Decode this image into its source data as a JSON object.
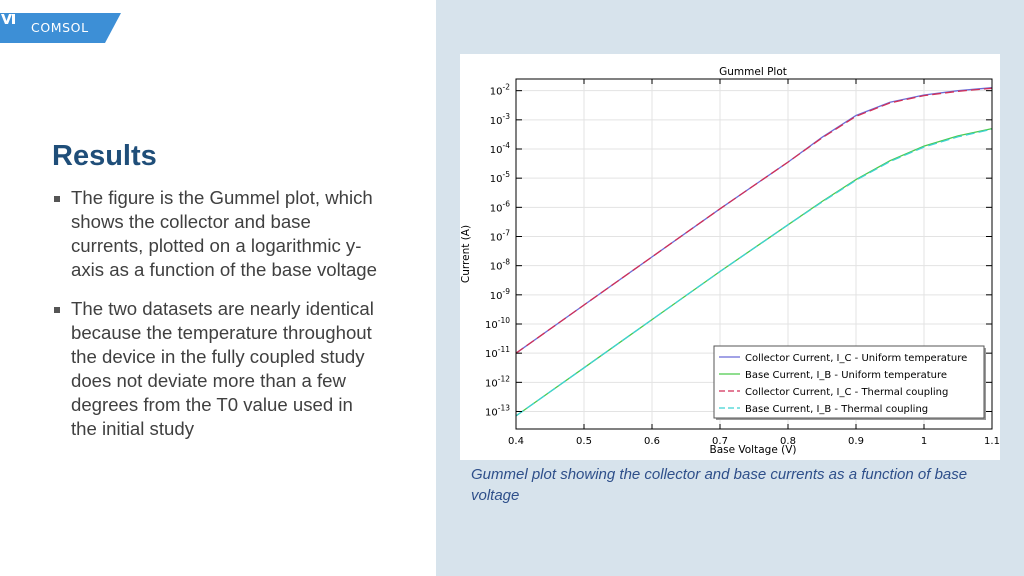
{
  "logo": {
    "text": "COMSOL",
    "tab_color": "#3d8fd6"
  },
  "slide": {
    "title": "Results",
    "bullets": [
      "The figure is the Gummel plot, which shows the collector and base currents, plotted on a logarithmic y-axis as a function of the base voltage",
      "The two datasets are nearly identical because the temperature throughout the device in the fully coupled study does not deviate more than a few degrees from the T0 value used in the initial study"
    ]
  },
  "caption": "Gummel plot showing the collector and base currents as a function of base voltage",
  "chart_data": {
    "type": "line",
    "title": "Gummel Plot",
    "xlabel": "Base Voltage (V)",
    "ylabel": "Current (A)",
    "xlim": [
      0.4,
      1.1
    ],
    "ylim_log10": [
      -13.6,
      -1.6
    ],
    "y_scale": "log",
    "grid": true,
    "legend_position": "bottom-right",
    "x_ticks": [
      {
        "value": 0.4,
        "label": "0.4"
      },
      {
        "value": 0.5,
        "label": "0.5"
      },
      {
        "value": 0.6,
        "label": "0.6"
      },
      {
        "value": 0.7,
        "label": "0.7"
      },
      {
        "value": 0.8,
        "label": "0.8"
      },
      {
        "value": 0.9,
        "label": "0.9"
      },
      {
        "value": 1.0,
        "label": "1"
      },
      {
        "value": 1.1,
        "label": "1.1"
      }
    ],
    "y_ticks": [
      {
        "exp": -2,
        "base": "10",
        "sup": "-2"
      },
      {
        "exp": -3,
        "base": "10",
        "sup": "-3"
      },
      {
        "exp": -4,
        "base": "10",
        "sup": "-4"
      },
      {
        "exp": -5,
        "base": "10",
        "sup": "-5"
      },
      {
        "exp": -6,
        "base": "10",
        "sup": "-6"
      },
      {
        "exp": -7,
        "base": "10",
        "sup": "-7"
      },
      {
        "exp": -8,
        "base": "10",
        "sup": "-8"
      },
      {
        "exp": -9,
        "base": "10",
        "sup": "-9"
      },
      {
        "exp": -10,
        "base": "10",
        "sup": "-10"
      },
      {
        "exp": -11,
        "base": "10",
        "sup": "-11"
      },
      {
        "exp": -12,
        "base": "10",
        "sup": "-12"
      },
      {
        "exp": -13,
        "base": "10",
        "sup": "-13"
      }
    ],
    "x": [
      0.4,
      0.5,
      0.6,
      0.7,
      0.8,
      0.85,
      0.9,
      0.95,
      1.0,
      1.05,
      1.1
    ],
    "series": [
      {
        "name": "Collector Current, I_C - Uniform temperature",
        "color": "#6b6bd6",
        "dash": "solid",
        "log10_values": [
          -11.0,
          -9.35,
          -7.7,
          -6.05,
          -4.45,
          -3.6,
          -2.85,
          -2.4,
          -2.15,
          -2.0,
          -1.9
        ]
      },
      {
        "name": "Base Current, I_B - Uniform temperature",
        "color": "#4cc94c",
        "dash": "solid",
        "log10_values": [
          -13.15,
          -11.5,
          -9.85,
          -8.2,
          -6.6,
          -5.8,
          -5.05,
          -4.4,
          -3.9,
          -3.55,
          -3.3
        ]
      },
      {
        "name": "Collector Current, I_C - Thermal coupling",
        "color": "#d22f57",
        "dash": "dashed",
        "log10_values": [
          -11.0,
          -9.35,
          -7.7,
          -6.05,
          -4.45,
          -3.62,
          -2.88,
          -2.42,
          -2.17,
          -2.02,
          -1.92
        ]
      },
      {
        "name": "Base Current, I_B - Thermal coupling",
        "color": "#3ed2d2",
        "dash": "dashed",
        "log10_values": [
          -13.15,
          -11.5,
          -9.85,
          -8.2,
          -6.6,
          -5.82,
          -5.07,
          -4.43,
          -3.93,
          -3.58,
          -3.32
        ]
      }
    ]
  }
}
